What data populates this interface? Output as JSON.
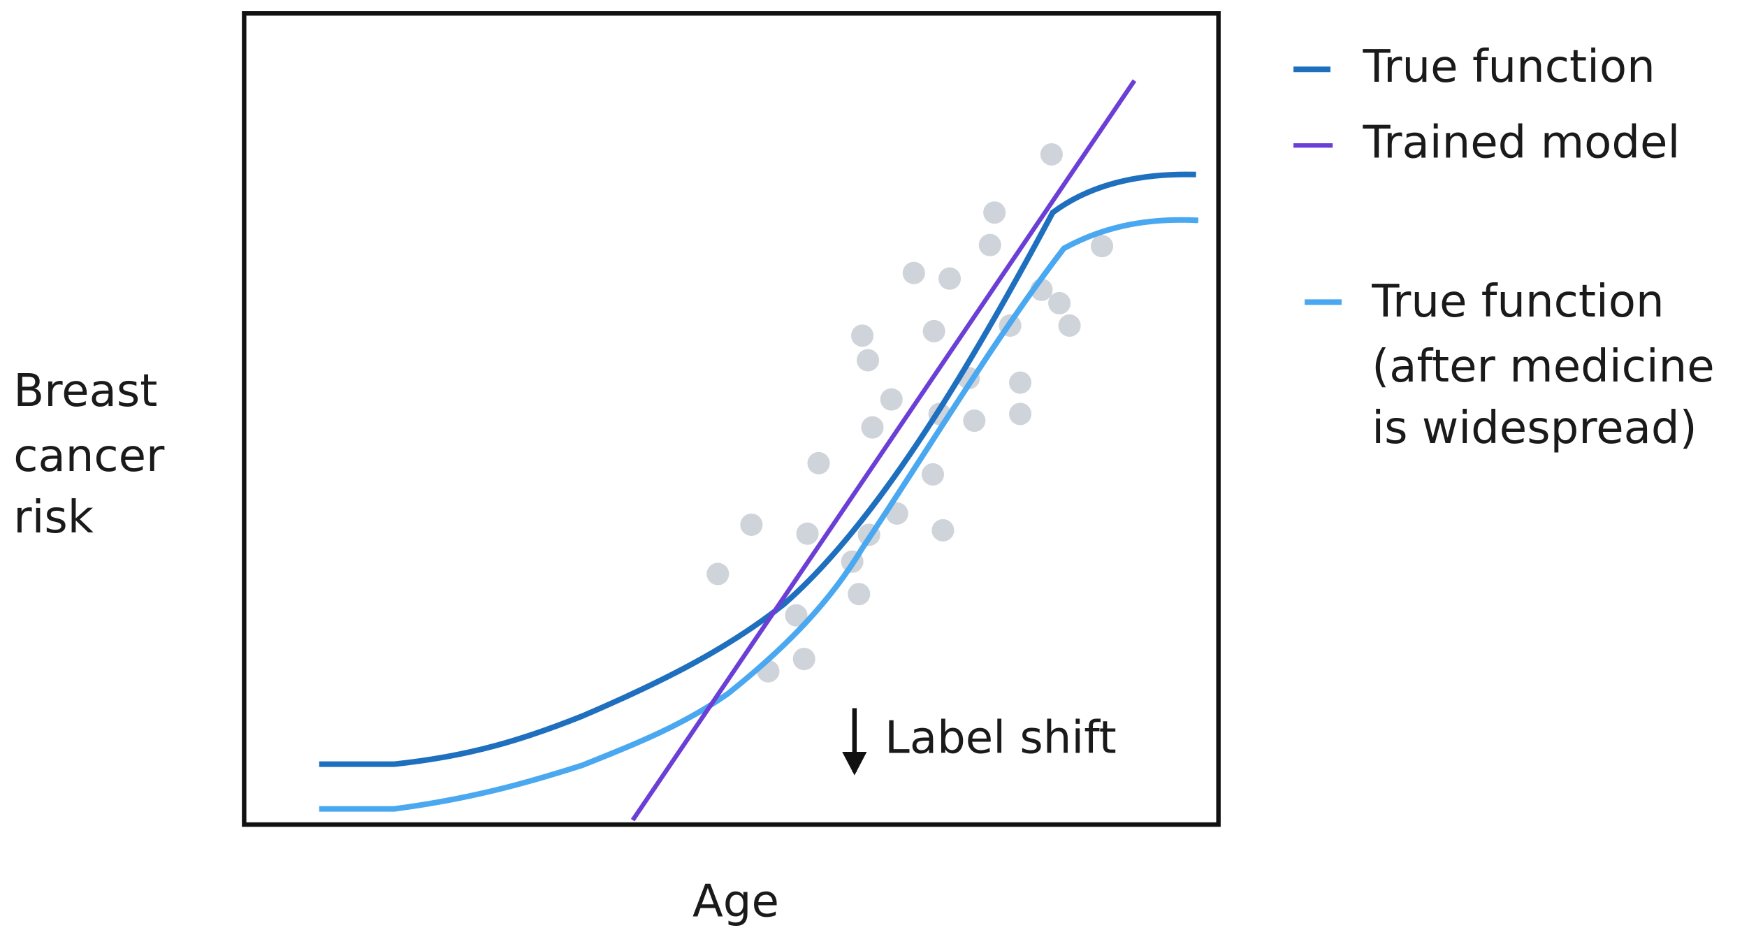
{
  "y_label": {
    "lines": [
      "Breast",
      "cancer",
      "risk"
    ]
  },
  "x_label": "Age",
  "annotation": "Label shift",
  "legend": [
    {
      "lines": [
        "True function"
      ]
    },
    {
      "lines": [
        "Trained model"
      ]
    },
    {
      "lines": [
        "True function",
        "(after medicine",
        "is widespread)"
      ]
    }
  ]
}
